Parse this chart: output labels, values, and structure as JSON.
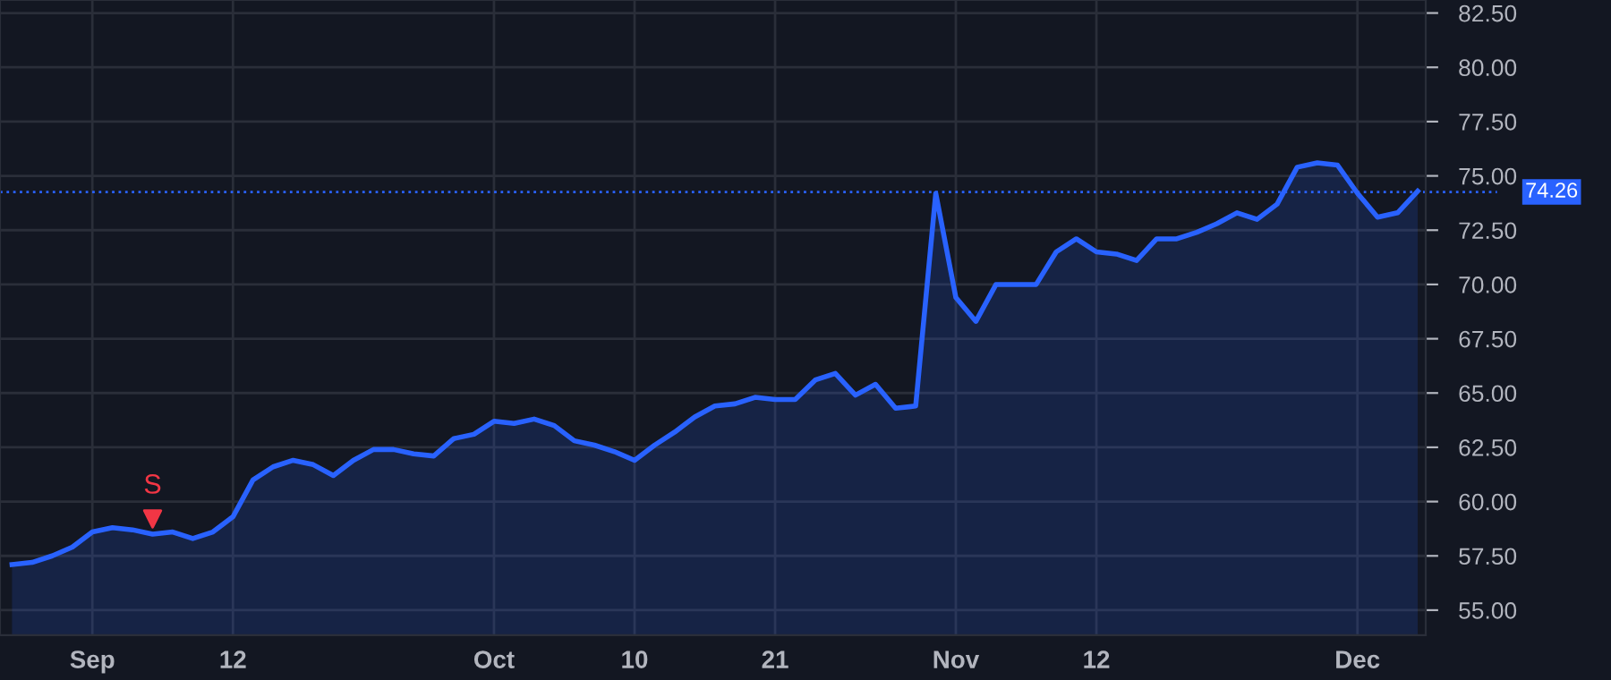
{
  "chart_data": {
    "type": "area",
    "categories": [
      null,
      null,
      null,
      null,
      "Sep",
      null,
      null,
      null,
      null,
      null,
      null,
      "12",
      null,
      null,
      null,
      null,
      null,
      null,
      null,
      null,
      null,
      null,
      null,
      null,
      "Oct",
      null,
      null,
      null,
      null,
      null,
      null,
      "10",
      null,
      null,
      null,
      null,
      null,
      null,
      "21",
      null,
      null,
      null,
      null,
      null,
      null,
      null,
      null,
      "Nov",
      null,
      null,
      null,
      null,
      null,
      null,
      "12",
      null,
      null,
      null,
      null,
      null,
      null,
      null,
      null,
      null,
      null,
      null,
      null,
      "Dec",
      null,
      null,
      null
    ],
    "series": [
      {
        "color": "#2962ff",
        "values": [
          57.1,
          57.2,
          57.5,
          57.9,
          58.6,
          58.8,
          58.7,
          58.5,
          58.6,
          58.3,
          58.6,
          59.3,
          61.0,
          61.6,
          61.9,
          61.7,
          61.2,
          61.9,
          62.4,
          62.4,
          62.2,
          62.1,
          62.9,
          63.1,
          63.7,
          63.6,
          63.8,
          63.5,
          62.8,
          62.6,
          62.3,
          61.9,
          62.6,
          63.2,
          63.9,
          64.4,
          64.5,
          64.8,
          64.7,
          64.7,
          65.6,
          65.9,
          64.9,
          65.4,
          64.3,
          64.4,
          74.2,
          69.4,
          68.3,
          70.0,
          70.0,
          70.0,
          71.5,
          72.1,
          71.5,
          71.4,
          71.1,
          72.1,
          72.1,
          72.4,
          72.8,
          73.3,
          73.0,
          73.7,
          75.4,
          75.6,
          75.5,
          74.2,
          73.1,
          73.3,
          74.3
        ]
      },
      {
        "name": "S",
        "type": "scatter",
        "marker": "triangle",
        "color": "#f23645",
        "values": [
          null,
          null,
          null,
          null,
          null,
          null,
          null,
          59.2,
          null,
          null,
          null,
          null,
          null,
          null,
          null,
          null,
          null,
          null,
          null,
          null,
          null,
          null,
          null,
          null,
          null,
          null,
          null,
          null,
          null,
          null,
          null,
          null,
          null,
          null,
          null,
          null,
          null,
          null,
          null,
          null,
          null,
          null,
          null,
          null,
          null,
          null,
          null,
          null,
          null,
          null,
          null,
          null,
          null,
          null,
          null,
          null,
          null,
          null,
          null,
          null,
          null,
          null,
          null,
          null,
          null,
          null,
          null,
          null,
          null,
          null,
          null
        ]
      }
    ],
    "ylim": [
      53.85,
      83.1
    ],
    "yticks": [
      {
        "value": 55,
        "label": "55.00"
      },
      {
        "value": 57.5,
        "label": "57.50"
      },
      {
        "value": 60,
        "label": "60.00"
      },
      {
        "value": 62.5,
        "label": "62.50"
      },
      {
        "value": 65,
        "label": "65.00"
      },
      {
        "value": 67.5,
        "label": "67.50"
      },
      {
        "value": 70,
        "label": "70.00"
      },
      {
        "value": 72.5,
        "label": "72.50"
      },
      {
        "value": 75,
        "label": "75.00"
      },
      {
        "value": 77.5,
        "label": "77.50"
      },
      {
        "value": 80,
        "label": "80.00"
      },
      {
        "value": 82.5,
        "label": "82.50"
      }
    ],
    "ref_lines": [
      {
        "axis": "y",
        "value": 74.26,
        "label": "74.26",
        "color": "#2962ff",
        "line_style": "dotted"
      }
    ],
    "grid": true,
    "legend": false
  }
}
